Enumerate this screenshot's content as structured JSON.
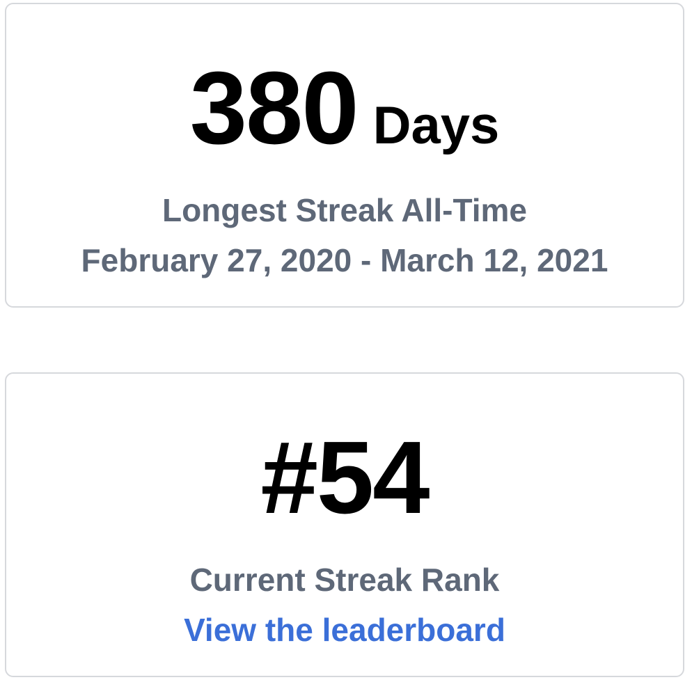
{
  "longest_streak": {
    "value": "380",
    "unit": "Days",
    "label": "Longest Streak All-Time",
    "date_range": "February 27, 2020 - March 12, 2021"
  },
  "current_rank": {
    "value": "#54",
    "label": "Current Streak Rank",
    "link_text": "View the leaderboard"
  },
  "colors": {
    "primary_text": "#000000",
    "secondary_text": "#5e6878",
    "link": "#3b6fd8",
    "card_border": "#d6d8dc"
  }
}
